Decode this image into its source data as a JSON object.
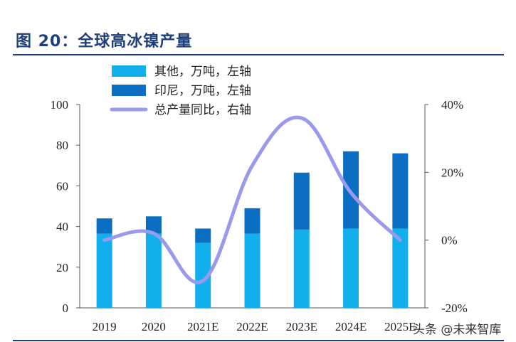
{
  "title": "图 20：全球高冰镍产量",
  "watermark": "头条 @未来智库",
  "colors": {
    "others": "#11b0ec",
    "indonesia": "#0a6fc2",
    "line": "#9999ee",
    "title": "#1f3f7a"
  },
  "chart_data": {
    "type": "bar",
    "categories": [
      "2019",
      "2020",
      "2021E",
      "2022E",
      "2023E",
      "2024E",
      "2025E"
    ],
    "series": [
      {
        "name": "其他，万吨，左轴",
        "type": "bar",
        "axis": "left",
        "values": [
          36.5,
          36.5,
          32,
          36.5,
          38.5,
          39,
          39
        ]
      },
      {
        "name": "印尼，万吨，左轴",
        "type": "bar",
        "axis": "left",
        "values": [
          7.5,
          8.5,
          7,
          12.5,
          28,
          38,
          37
        ]
      },
      {
        "name": "总产量同比，右轴",
        "type": "line",
        "axis": "right",
        "values": [
          0,
          2,
          -12,
          22,
          36,
          14,
          0
        ]
      }
    ],
    "yleft": {
      "min": 0,
      "max": 100,
      "ticks": [
        "0",
        "20",
        "40",
        "60",
        "80",
        "100"
      ]
    },
    "yright": {
      "min": -20,
      "max": 40,
      "ticks": [
        "-20%",
        "0%",
        "20%",
        "40%"
      ]
    },
    "legend": "top-left"
  }
}
